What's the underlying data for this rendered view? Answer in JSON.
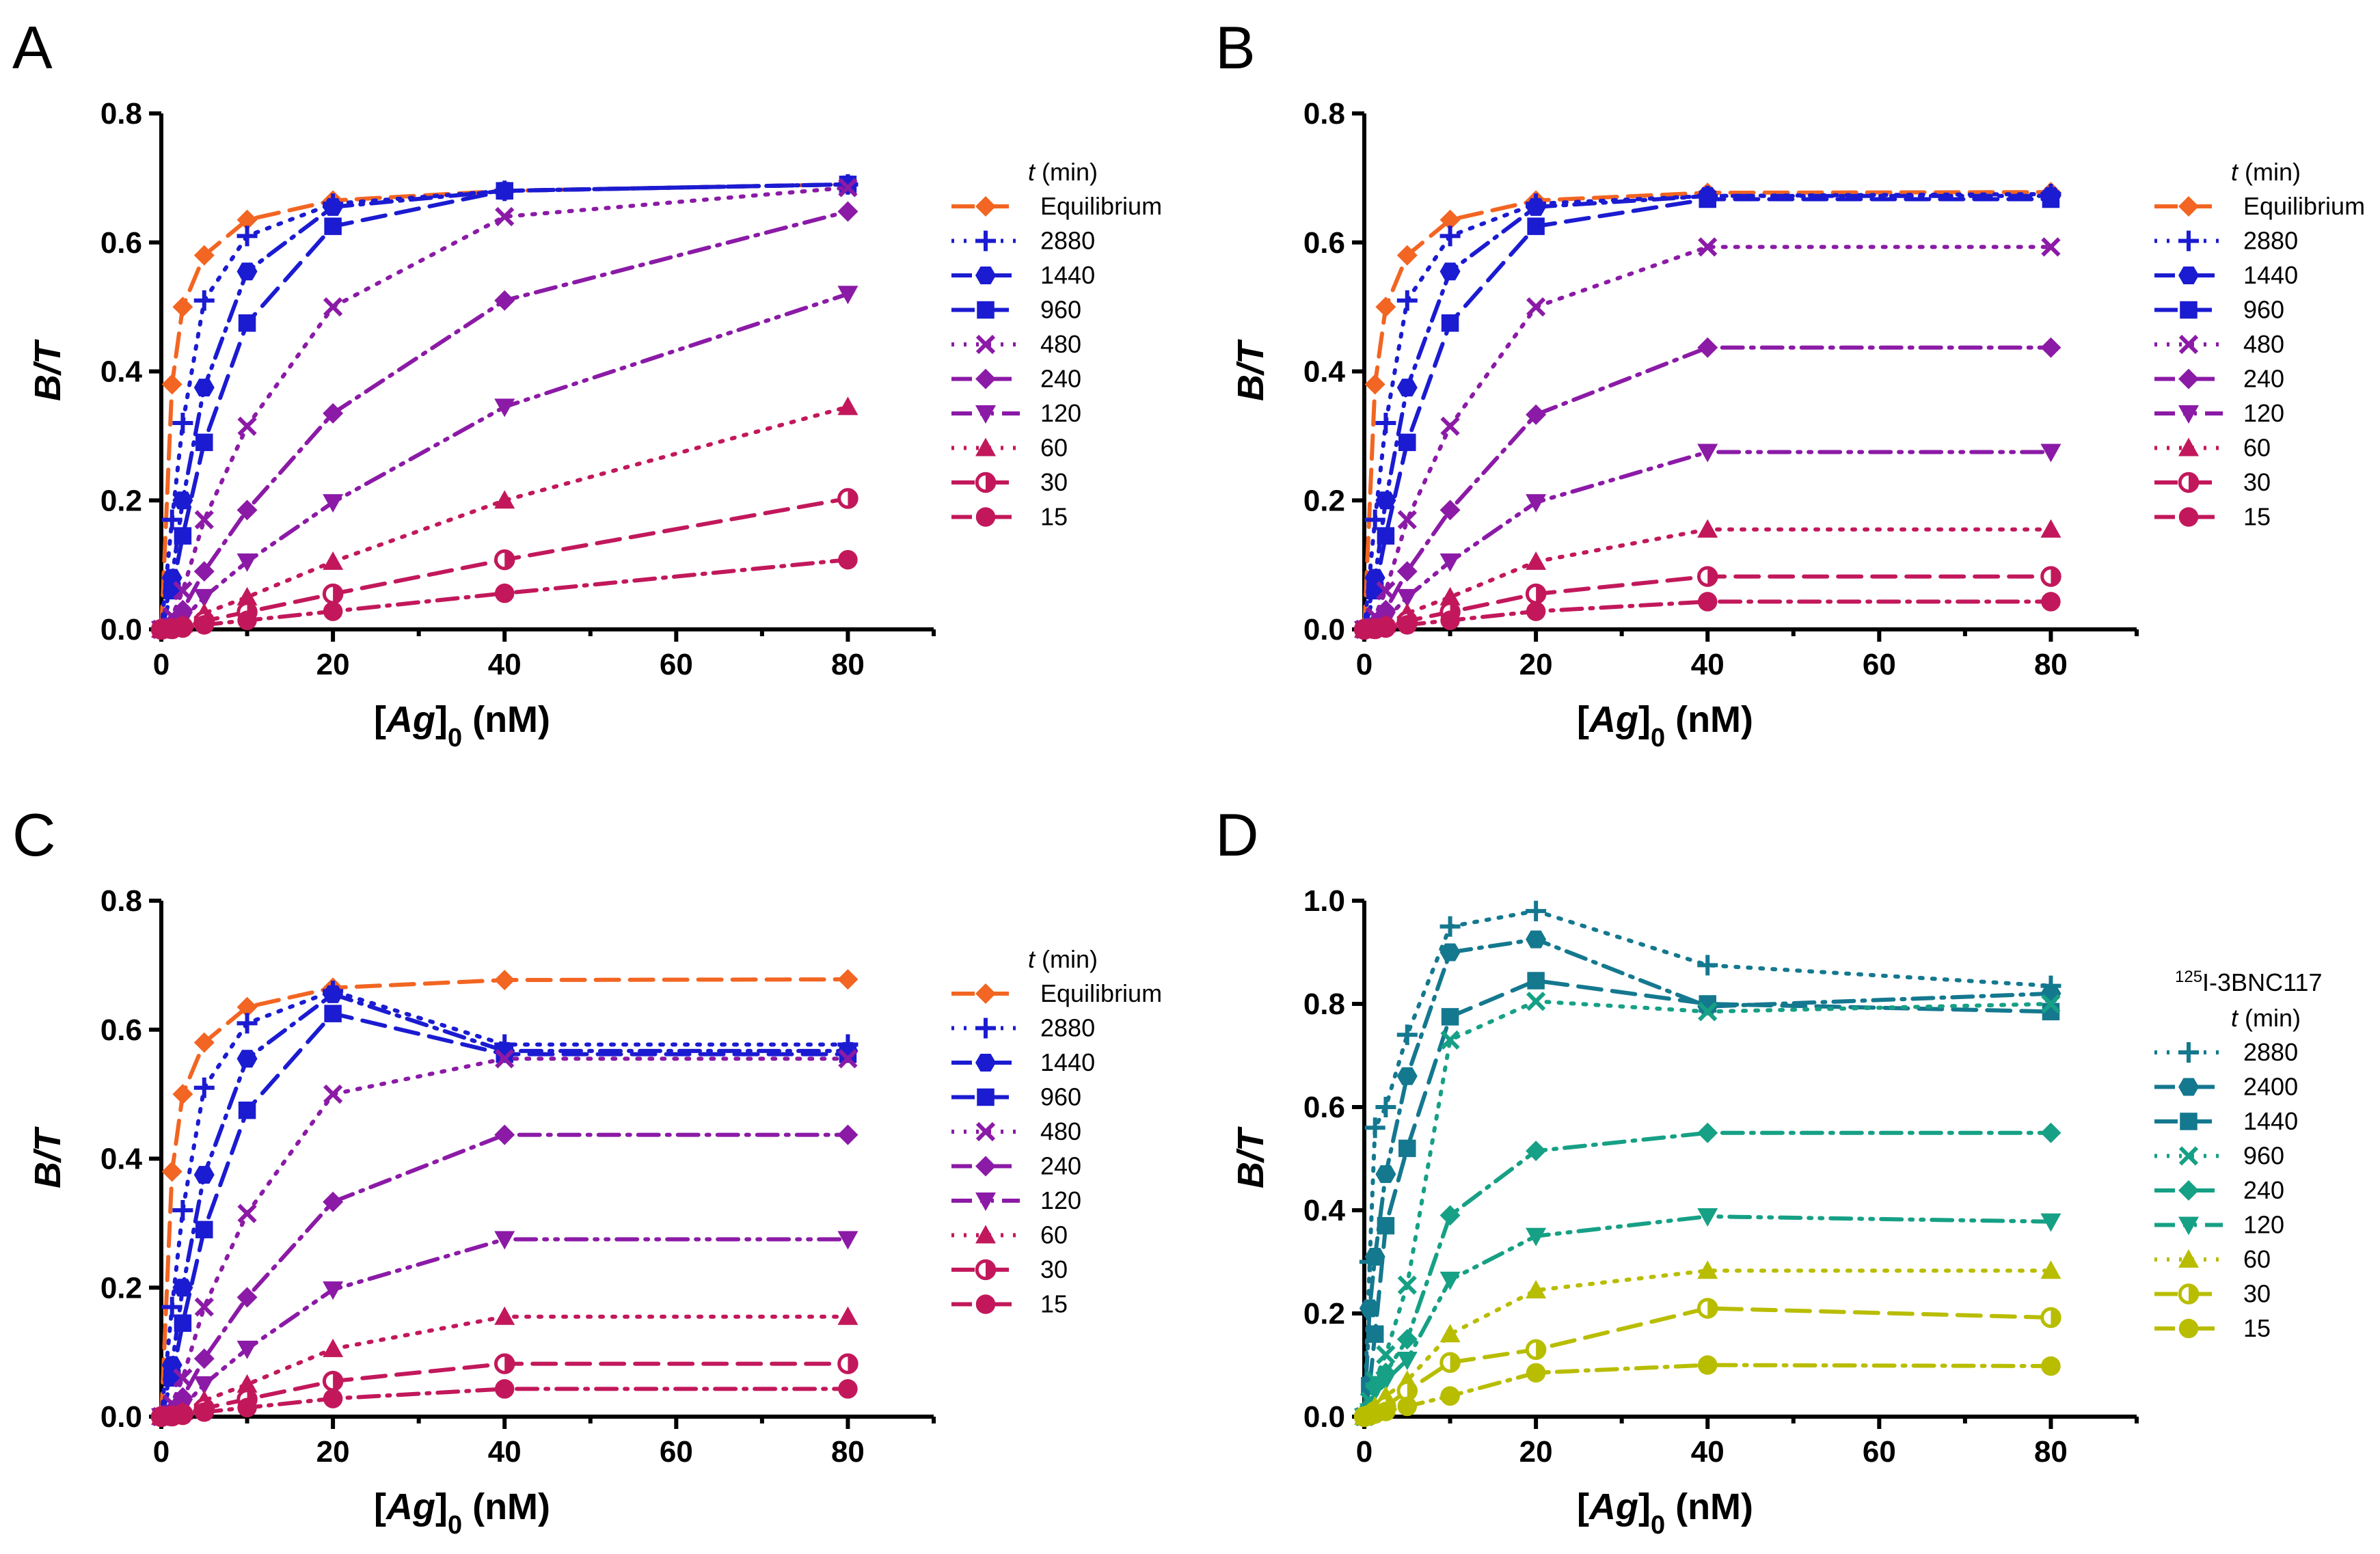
{
  "figure": {
    "xlabel_prefix": "[",
    "xlabel_italic": "Ag",
    "xlabel_bracket": "]",
    "xlabel_subscript": "0",
    "xlabel_suffix": " (nM)",
    "ylabel": "B/T"
  },
  "colors": {
    "equilibrium": "#f26522",
    "blue": "#1b1bd1",
    "purple": "#8b1aa6",
    "magenta": "#c2185b",
    "teal": "#14788f",
    "green": "#16a085",
    "olive": "#b8bd00"
  },
  "chart_data": [
    {
      "type": "line",
      "panel": "A",
      "xlabel": "[Ag]0 (nM)",
      "ylabel": "B/T",
      "xlim": [
        0,
        90
      ],
      "ylim": [
        0,
        0.8
      ],
      "xticks": [
        "0",
        "20",
        "40",
        "60",
        "80"
      ],
      "yticks": [
        "0.0",
        "0.2",
        "0.4",
        "0.6",
        "0.8"
      ],
      "legend_title_italic": "t",
      "legend_title_rest": " (min)",
      "legend_title_prefix": "",
      "x": [
        0,
        1.25,
        2.5,
        5,
        10,
        20,
        40,
        80
      ],
      "series": [
        {
          "name": "Equilibrium",
          "color": "#f26522",
          "marker": "diamond",
          "dash": "dash",
          "values": [
            0.0,
            0.38,
            0.5,
            0.58,
            0.635,
            0.665,
            0.68,
            0.69
          ]
        },
        {
          "name": "2880",
          "color": "#1b1bd1",
          "marker": "plus",
          "dash": "dot",
          "values": [
            0.0,
            0.17,
            0.32,
            0.51,
            0.61,
            0.66,
            0.68,
            0.69
          ]
        },
        {
          "name": "1440",
          "color": "#1b1bd1",
          "marker": "hexagon",
          "dash": "dashdot",
          "values": [
            0.0,
            0.08,
            0.2,
            0.375,
            0.555,
            0.655,
            0.68,
            0.69
          ]
        },
        {
          "name": "960",
          "color": "#1b1bd1",
          "marker": "square",
          "dash": "dash",
          "values": [
            0.0,
            0.06,
            0.145,
            0.29,
            0.475,
            0.625,
            0.68,
            0.69
          ]
        },
        {
          "name": "480",
          "color": "#8b1aa6",
          "marker": "x",
          "dash": "dot",
          "values": [
            0.0,
            0.02,
            0.06,
            0.17,
            0.315,
            0.5,
            0.64,
            0.685
          ]
        },
        {
          "name": "240",
          "color": "#8b1aa6",
          "marker": "diamond",
          "dash": "dashdot",
          "values": [
            0.0,
            0.01,
            0.03,
            0.09,
            0.185,
            0.335,
            0.51,
            0.648
          ]
        },
        {
          "name": "120",
          "color": "#8b1aa6",
          "marker": "tridown",
          "dash": "dashdotdot",
          "values": [
            0.0,
            0.005,
            0.015,
            0.05,
            0.105,
            0.197,
            0.345,
            0.52
          ]
        },
        {
          "name": "60",
          "color": "#c2185b",
          "marker": "triup",
          "dash": "dot",
          "values": [
            0.0,
            0.002,
            0.008,
            0.025,
            0.05,
            0.105,
            0.2,
            0.345
          ]
        },
        {
          "name": "30",
          "color": "#c2185b",
          "marker": "circlehalf",
          "dash": "dash",
          "values": [
            0.0,
            0.001,
            0.004,
            0.013,
            0.027,
            0.055,
            0.108,
            0.203
          ]
        },
        {
          "name": "15",
          "color": "#c2185b",
          "marker": "circle",
          "dash": "dashdot",
          "values": [
            0.0,
            0.0005,
            0.002,
            0.007,
            0.014,
            0.028,
            0.056,
            0.108
          ]
        }
      ]
    },
    {
      "type": "line",
      "panel": "B",
      "xlabel": "[Ag]0 (nM)",
      "ylabel": "B/T",
      "xlim": [
        0,
        90
      ],
      "ylim": [
        0,
        0.8
      ],
      "xticks": [
        "0",
        "20",
        "40",
        "60",
        "80"
      ],
      "yticks": [
        "0.0",
        "0.2",
        "0.4",
        "0.6",
        "0.8"
      ],
      "legend_title_italic": "t",
      "legend_title_rest": " (min)",
      "legend_title_prefix": "",
      "x": [
        0,
        1.25,
        2.5,
        5,
        10,
        20,
        40,
        80
      ],
      "series": [
        {
          "name": "Equilibrium",
          "color": "#f26522",
          "marker": "diamond",
          "dash": "dash",
          "values": [
            0.0,
            0.38,
            0.5,
            0.58,
            0.635,
            0.665,
            0.677,
            0.678
          ]
        },
        {
          "name": "2880",
          "color": "#1b1bd1",
          "marker": "plus",
          "dash": "dot",
          "values": [
            0.0,
            0.17,
            0.32,
            0.51,
            0.61,
            0.66,
            0.672,
            0.675
          ]
        },
        {
          "name": "1440",
          "color": "#1b1bd1",
          "marker": "hexagon",
          "dash": "dashdot",
          "values": [
            0.0,
            0.08,
            0.2,
            0.375,
            0.555,
            0.655,
            0.672,
            0.672
          ]
        },
        {
          "name": "960",
          "color": "#1b1bd1",
          "marker": "square",
          "dash": "dash",
          "values": [
            0.0,
            0.06,
            0.145,
            0.29,
            0.475,
            0.625,
            0.667,
            0.667
          ]
        },
        {
          "name": "480",
          "color": "#8b1aa6",
          "marker": "x",
          "dash": "dot",
          "values": [
            0.0,
            0.02,
            0.06,
            0.17,
            0.315,
            0.5,
            0.593,
            0.593
          ]
        },
        {
          "name": "240",
          "color": "#8b1aa6",
          "marker": "diamond",
          "dash": "dashdot",
          "values": [
            0.0,
            0.01,
            0.03,
            0.09,
            0.185,
            0.333,
            0.437,
            0.437
          ]
        },
        {
          "name": "120",
          "color": "#8b1aa6",
          "marker": "tridown",
          "dash": "dashdotdot",
          "values": [
            0.0,
            0.005,
            0.015,
            0.05,
            0.105,
            0.197,
            0.275,
            0.275
          ]
        },
        {
          "name": "60",
          "color": "#c2185b",
          "marker": "triup",
          "dash": "dot",
          "values": [
            0.0,
            0.002,
            0.008,
            0.025,
            0.05,
            0.105,
            0.155,
            0.155
          ]
        },
        {
          "name": "30",
          "color": "#c2185b",
          "marker": "circlehalf",
          "dash": "dash",
          "values": [
            0.0,
            0.001,
            0.004,
            0.013,
            0.027,
            0.055,
            0.082,
            0.082
          ]
        },
        {
          "name": "15",
          "color": "#c2185b",
          "marker": "circle",
          "dash": "dashdot",
          "values": [
            0.0,
            0.0005,
            0.002,
            0.007,
            0.014,
            0.028,
            0.043,
            0.043
          ]
        }
      ]
    },
    {
      "type": "line",
      "panel": "C",
      "xlabel": "[Ag]0 (nM)",
      "ylabel": "B/T",
      "xlim": [
        0,
        90
      ],
      "ylim": [
        0,
        0.8
      ],
      "xticks": [
        "0",
        "20",
        "40",
        "60",
        "80"
      ],
      "yticks": [
        "0.0",
        "0.2",
        "0.4",
        "0.6",
        "0.8"
      ],
      "legend_title_italic": "t",
      "legend_title_rest": " (min)",
      "legend_title_prefix": "",
      "x": [
        0,
        1.25,
        2.5,
        5,
        10,
        20,
        40,
        80
      ],
      "series": [
        {
          "name": "Equilibrium",
          "color": "#f26522",
          "marker": "diamond",
          "dash": "dash",
          "values": [
            0.0,
            0.38,
            0.5,
            0.58,
            0.635,
            0.665,
            0.677,
            0.678
          ]
        },
        {
          "name": "2880",
          "color": "#1b1bd1",
          "marker": "plus",
          "dash": "dot",
          "values": [
            0.0,
            0.17,
            0.32,
            0.51,
            0.61,
            0.66,
            0.577,
            0.577
          ]
        },
        {
          "name": "1440",
          "color": "#1b1bd1",
          "marker": "hexagon",
          "dash": "dashdot",
          "values": [
            0.0,
            0.08,
            0.2,
            0.375,
            0.555,
            0.655,
            0.567,
            0.567
          ]
        },
        {
          "name": "960",
          "color": "#1b1bd1",
          "marker": "square",
          "dash": "dash",
          "values": [
            0.0,
            0.06,
            0.145,
            0.29,
            0.475,
            0.625,
            0.562,
            0.562
          ]
        },
        {
          "name": "480",
          "color": "#8b1aa6",
          "marker": "x",
          "dash": "dot",
          "values": [
            0.0,
            0.02,
            0.06,
            0.17,
            0.315,
            0.5,
            0.555,
            0.555
          ]
        },
        {
          "name": "240",
          "color": "#8b1aa6",
          "marker": "diamond",
          "dash": "dashdot",
          "values": [
            0.0,
            0.01,
            0.03,
            0.09,
            0.185,
            0.333,
            0.437,
            0.437
          ]
        },
        {
          "name": "120",
          "color": "#8b1aa6",
          "marker": "tridown",
          "dash": "dashdotdot",
          "values": [
            0.0,
            0.005,
            0.015,
            0.05,
            0.105,
            0.197,
            0.275,
            0.275
          ]
        },
        {
          "name": "60",
          "color": "#c2185b",
          "marker": "triup",
          "dash": "dot",
          "values": [
            0.0,
            0.002,
            0.008,
            0.025,
            0.05,
            0.105,
            0.155,
            0.155
          ]
        },
        {
          "name": "30",
          "color": "#c2185b",
          "marker": "circlehalf",
          "dash": "dash",
          "values": [
            0.0,
            0.001,
            0.004,
            0.013,
            0.027,
            0.055,
            0.082,
            0.082
          ]
        },
        {
          "name": "15",
          "color": "#c2185b",
          "marker": "circle",
          "dash": "dashdot",
          "values": [
            0.0,
            0.0005,
            0.002,
            0.007,
            0.014,
            0.028,
            0.043,
            0.043
          ]
        }
      ]
    },
    {
      "type": "line",
      "panel": "D",
      "xlabel": "[Ag]0 (nM)",
      "ylabel": "B/T",
      "xlim": [
        0,
        90
      ],
      "ylim": [
        0,
        1.0
      ],
      "xticks": [
        "0",
        "20",
        "40",
        "60",
        "80"
      ],
      "yticks": [
        "0.0",
        "0.2",
        "0.4",
        "0.6",
        "0.8",
        "1.0"
      ],
      "legend_title_prefix": "125",
      "legend_title_prefix_rest": "I-3BNC117",
      "legend_title_italic": "t",
      "legend_title_rest": " (min)",
      "x": [
        0,
        0.625,
        1.25,
        2.5,
        5,
        10,
        20,
        40,
        80
      ],
      "series": [
        {
          "name": "2880",
          "color": "#14788f",
          "marker": "plus",
          "dash": "dot",
          "values": [
            0.0,
            0.3,
            0.56,
            0.6,
            0.74,
            0.95,
            0.98,
            0.875,
            0.835
          ]
        },
        {
          "name": "2400",
          "color": "#14788f",
          "marker": "hexagon",
          "dash": "dashdot",
          "values": [
            0.0,
            0.21,
            0.31,
            0.47,
            0.66,
            0.9,
            0.925,
            0.795,
            0.82
          ]
        },
        {
          "name": "1440",
          "color": "#14788f",
          "marker": "square",
          "dash": "dash",
          "values": [
            0.0,
            0.06,
            0.16,
            0.37,
            0.52,
            0.775,
            0.845,
            0.8,
            0.785
          ]
        },
        {
          "name": "960",
          "color": "#16a085",
          "marker": "x",
          "dash": "dot",
          "values": [
            0.0,
            0.03,
            0.07,
            0.12,
            0.255,
            0.73,
            0.805,
            0.785,
            0.8
          ]
        },
        {
          "name": "240",
          "color": "#16a085",
          "marker": "diamond",
          "dash": "dashdot",
          "values": [
            0.0,
            0.02,
            0.06,
            0.085,
            0.15,
            0.39,
            0.515,
            0.55,
            0.55
          ]
        },
        {
          "name": "120",
          "color": "#16a085",
          "marker": "tridown",
          "dash": "dashdotdot",
          "values": [
            0.0,
            0.01,
            0.05,
            0.07,
            0.11,
            0.265,
            0.35,
            0.388,
            0.378
          ]
        },
        {
          "name": "60",
          "color": "#b8bd00",
          "marker": "triup",
          "dash": "dot",
          "values": [
            0.0,
            0.005,
            0.02,
            0.04,
            0.07,
            0.16,
            0.245,
            0.283,
            0.283
          ]
        },
        {
          "name": "30",
          "color": "#b8bd00",
          "marker": "circlehalf",
          "dash": "dash",
          "values": [
            0.0,
            0.003,
            0.01,
            0.02,
            0.05,
            0.105,
            0.13,
            0.21,
            0.192
          ]
        },
        {
          "name": "15",
          "color": "#b8bd00",
          "marker": "circle",
          "dash": "dashdot",
          "values": [
            0.0,
            0.002,
            0.005,
            0.01,
            0.02,
            0.04,
            0.085,
            0.1,
            0.098
          ]
        }
      ]
    }
  ]
}
